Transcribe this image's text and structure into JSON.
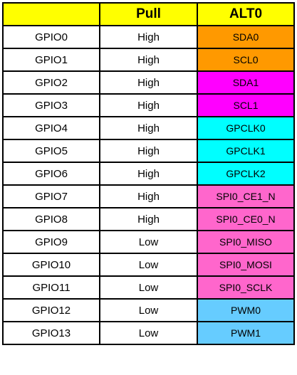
{
  "header": {
    "col1": "",
    "col2": "Pull",
    "col3": "ALT0",
    "bg": "#ffff00"
  },
  "group_colors": {
    "i2c": "#ff9900",
    "spi_i2c": "#ff00ff",
    "gpclk": "#00ffff",
    "spi0": "#ff66cc",
    "pwm": "#66ccff"
  },
  "rows": [
    {
      "pin": "GPIO0",
      "pull": "High",
      "alt0": "SDA0",
      "color": "#ff9900"
    },
    {
      "pin": "GPIO1",
      "pull": "High",
      "alt0": "SCL0",
      "color": "#ff9900"
    },
    {
      "pin": "GPIO2",
      "pull": "High",
      "alt0": "SDA1",
      "color": "#ff00ff"
    },
    {
      "pin": "GPIO3",
      "pull": "High",
      "alt0": "SCL1",
      "color": "#ff00ff"
    },
    {
      "pin": "GPIO4",
      "pull": "High",
      "alt0": "GPCLK0",
      "color": "#00ffff"
    },
    {
      "pin": "GPIO5",
      "pull": "High",
      "alt0": "GPCLK1",
      "color": "#00ffff"
    },
    {
      "pin": "GPIO6",
      "pull": "High",
      "alt0": "GPCLK2",
      "color": "#00ffff"
    },
    {
      "pin": "GPIO7",
      "pull": "High",
      "alt0": "SPI0_CE1_N",
      "color": "#ff66cc"
    },
    {
      "pin": "GPIO8",
      "pull": "High",
      "alt0": "SPI0_CE0_N",
      "color": "#ff66cc"
    },
    {
      "pin": "GPIO9",
      "pull": "Low",
      "alt0": "SPI0_MISO",
      "color": "#ff66cc"
    },
    {
      "pin": "GPIO10",
      "pull": "Low",
      "alt0": "SPI0_MOSI",
      "color": "#ff66cc"
    },
    {
      "pin": "GPIO11",
      "pull": "Low",
      "alt0": "SPI0_SCLK",
      "color": "#ff66cc"
    },
    {
      "pin": "GPIO12",
      "pull": "Low",
      "alt0": "PWM0",
      "color": "#66ccff"
    },
    {
      "pin": "GPIO13",
      "pull": "Low",
      "alt0": "PWM1",
      "color": "#66ccff"
    }
  ]
}
